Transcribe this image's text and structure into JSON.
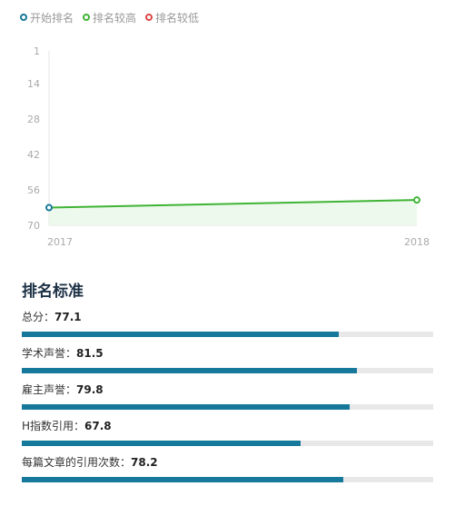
{
  "legend": [
    {
      "label": "开始排名",
      "color": "#16789a"
    },
    {
      "label": "排名较高",
      "color": "#3fb435"
    },
    {
      "label": "排名较低",
      "color": "#e04545"
    }
  ],
  "chart_data": {
    "type": "line",
    "x": [
      "2017",
      "2018"
    ],
    "series": [
      {
        "values": [
          63,
          60
        ]
      }
    ],
    "y_ticks": [
      "1",
      "14",
      "28",
      "42",
      "56",
      "70"
    ],
    "ylim": [
      1,
      70
    ],
    "y_reversed": true,
    "line_color": "#3fb435",
    "grid": false
  },
  "criteria": {
    "title": "排名标准",
    "items": [
      {
        "label": "总分：",
        "value": "77.1"
      },
      {
        "label": "学术声誉：",
        "value": "81.5"
      },
      {
        "label": "雇主声誉：",
        "value": "79.8"
      },
      {
        "label": "H指数引用：",
        "value": "67.8"
      },
      {
        "label": "每篇文章的引用次数：",
        "value": "78.2"
      }
    ]
  }
}
